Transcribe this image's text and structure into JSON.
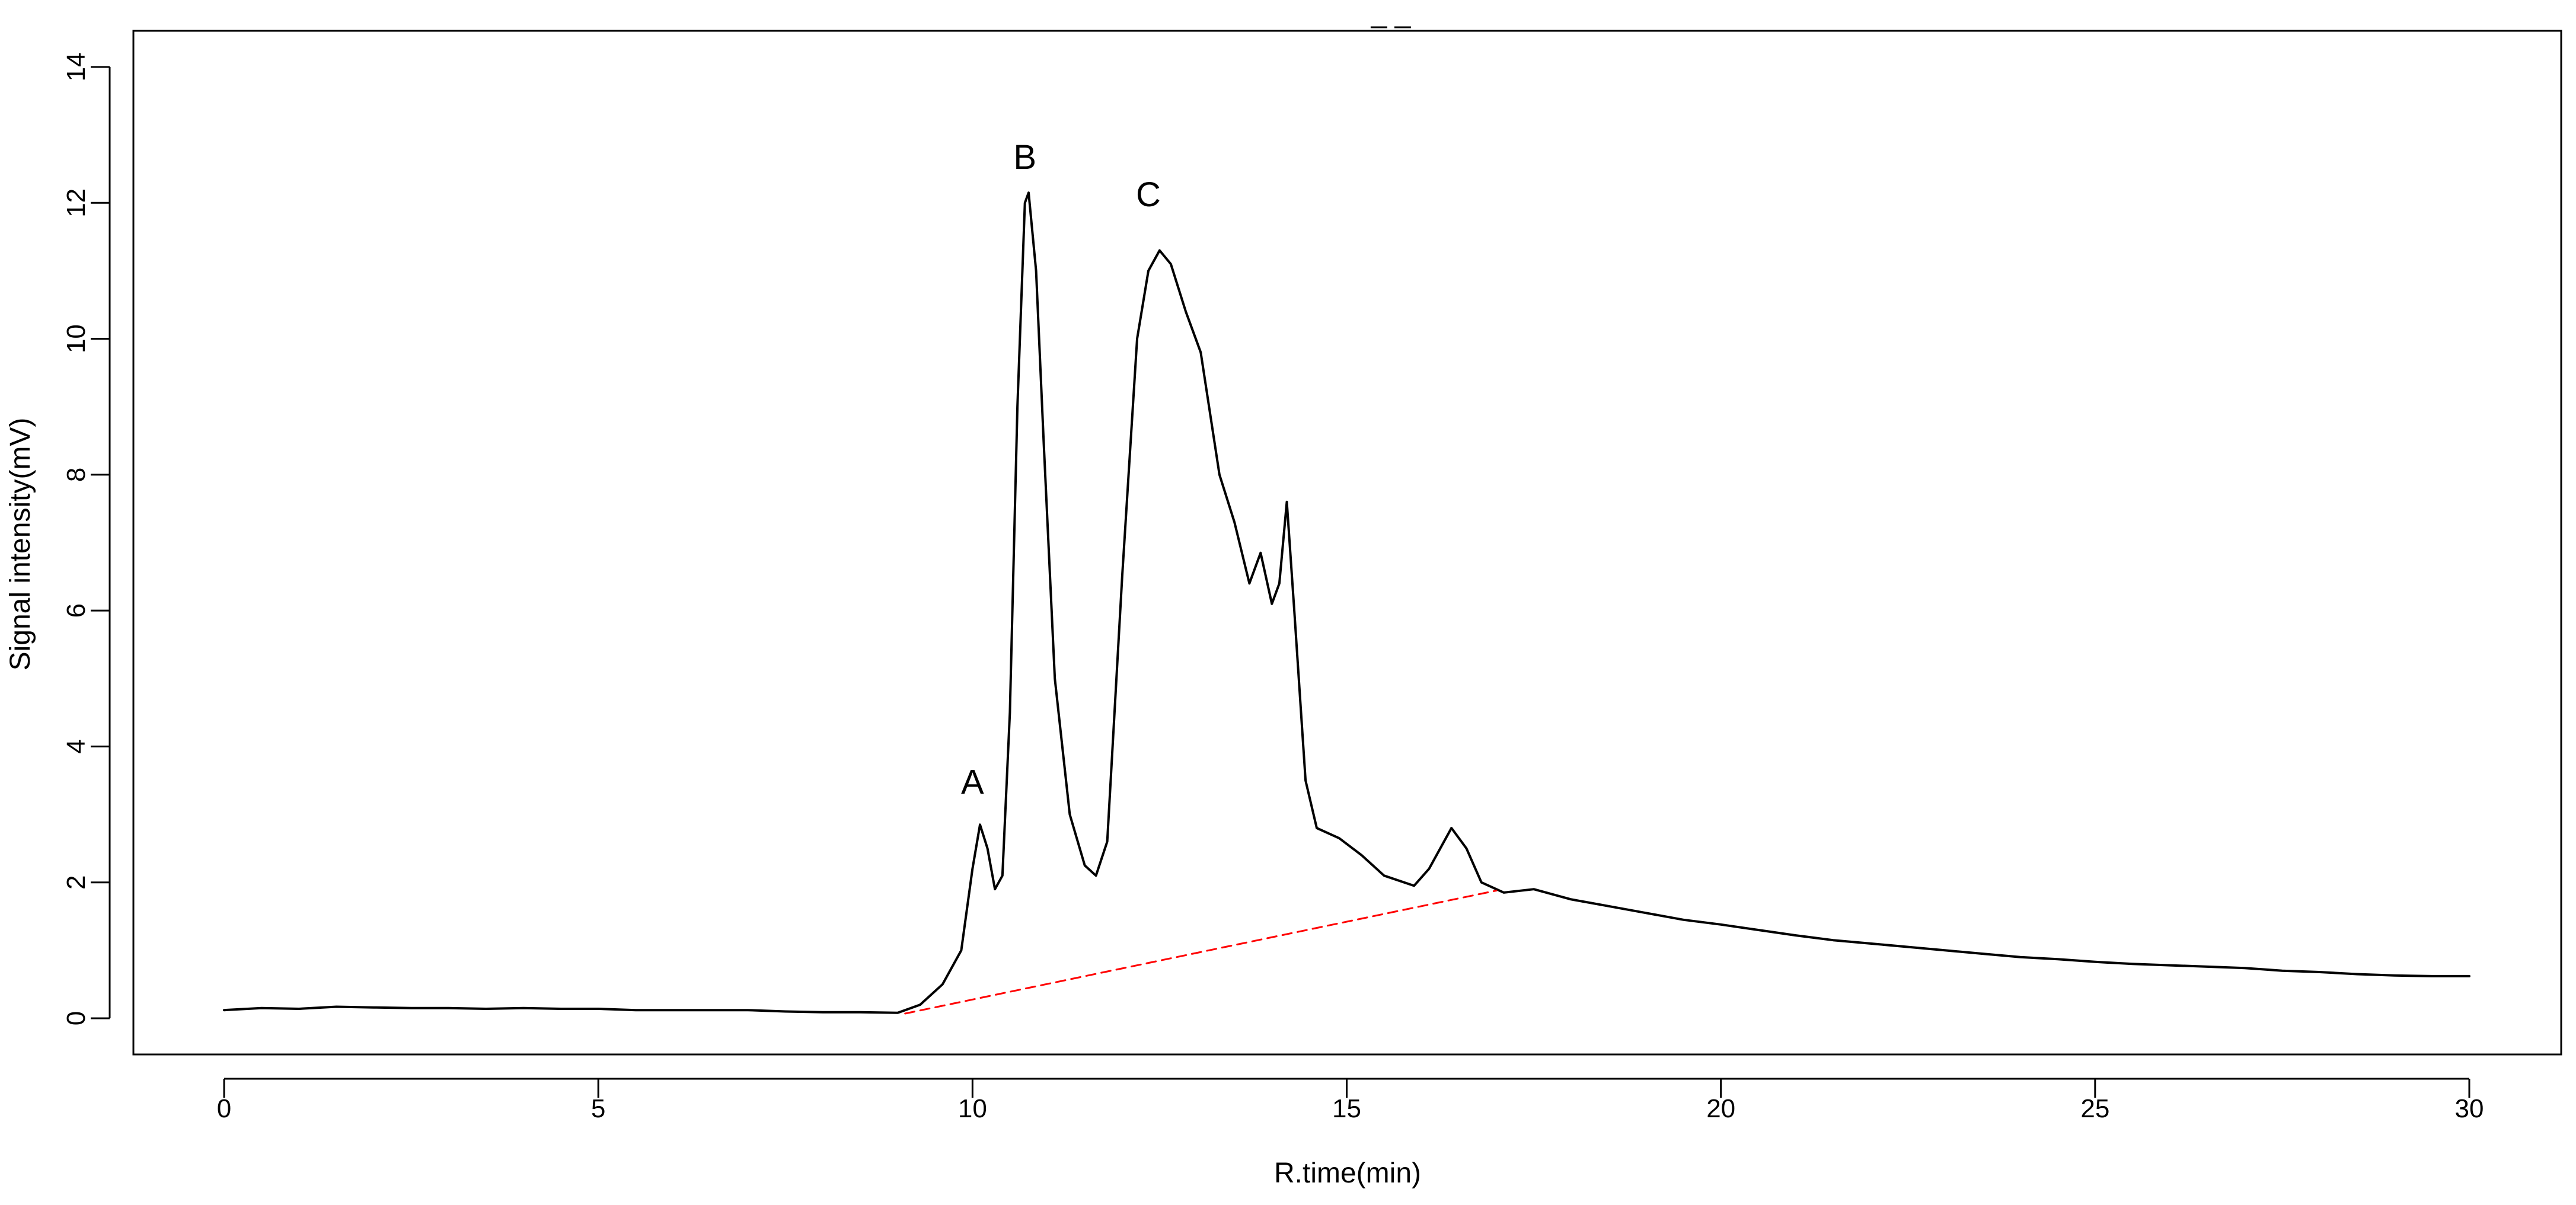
{
  "chart_data": {
    "type": "line",
    "title": "_ _",
    "xlabel": "R.time(min)",
    "ylabel": "Signal intensity(mV)",
    "xlim": [
      0,
      30
    ],
    "ylim": [
      0,
      14
    ],
    "x_ticks": [
      0,
      5,
      10,
      15,
      20,
      25,
      30
    ],
    "x_tick_labels": [
      "0",
      "5",
      "10",
      "15",
      "20",
      "25",
      "30"
    ],
    "y_ticks": [
      0,
      2,
      4,
      6,
      8,
      10,
      12,
      14
    ],
    "y_tick_labels": [
      "0",
      "2",
      "4",
      "6",
      "8",
      "10",
      "12",
      "14"
    ],
    "grid": false,
    "legend": "none",
    "series": [
      {
        "color": "#000000",
        "style": "solid",
        "points": [
          [
            0.0,
            0.12
          ],
          [
            0.5,
            0.15
          ],
          [
            1.0,
            0.14
          ],
          [
            1.5,
            0.17
          ],
          [
            2.0,
            0.16
          ],
          [
            2.5,
            0.15
          ],
          [
            3.0,
            0.15
          ],
          [
            3.5,
            0.14
          ],
          [
            4.0,
            0.15
          ],
          [
            4.5,
            0.14
          ],
          [
            5.0,
            0.14
          ],
          [
            5.5,
            0.12
          ],
          [
            6.0,
            0.12
          ],
          [
            6.5,
            0.12
          ],
          [
            7.0,
            0.12
          ],
          [
            7.5,
            0.1
          ],
          [
            8.0,
            0.09
          ],
          [
            8.5,
            0.09
          ],
          [
            9.0,
            0.08
          ],
          [
            9.3,
            0.2
          ],
          [
            9.6,
            0.5
          ],
          [
            9.85,
            1.0
          ],
          [
            10.0,
            2.2
          ],
          [
            10.1,
            2.85
          ],
          [
            10.2,
            2.5
          ],
          [
            10.3,
            1.9
          ],
          [
            10.4,
            2.1
          ],
          [
            10.5,
            4.5
          ],
          [
            10.6,
            9.0
          ],
          [
            10.7,
            12.0
          ],
          [
            10.75,
            12.15
          ],
          [
            10.85,
            11.0
          ],
          [
            10.95,
            8.5
          ],
          [
            11.1,
            5.0
          ],
          [
            11.3,
            3.0
          ],
          [
            11.5,
            2.25
          ],
          [
            11.65,
            2.1
          ],
          [
            11.8,
            2.6
          ],
          [
            12.0,
            6.5
          ],
          [
            12.2,
            10.0
          ],
          [
            12.35,
            11.0
          ],
          [
            12.5,
            11.3
          ],
          [
            12.65,
            11.1
          ],
          [
            12.85,
            10.4
          ],
          [
            13.05,
            9.8
          ],
          [
            13.3,
            8.0
          ],
          [
            13.5,
            7.3
          ],
          [
            13.7,
            6.4
          ],
          [
            13.85,
            6.85
          ],
          [
            14.0,
            6.1
          ],
          [
            14.1,
            6.4
          ],
          [
            14.2,
            7.6
          ],
          [
            14.3,
            6.0
          ],
          [
            14.45,
            3.5
          ],
          [
            14.6,
            2.8
          ],
          [
            14.9,
            2.65
          ],
          [
            15.2,
            2.4
          ],
          [
            15.5,
            2.1
          ],
          [
            15.9,
            1.95
          ],
          [
            16.1,
            2.2
          ],
          [
            16.4,
            2.8
          ],
          [
            16.6,
            2.5
          ],
          [
            16.8,
            2.0
          ],
          [
            17.1,
            1.85
          ],
          [
            17.5,
            1.9
          ],
          [
            18.0,
            1.75
          ],
          [
            18.5,
            1.65
          ],
          [
            19.0,
            1.55
          ],
          [
            19.5,
            1.45
          ],
          [
            20.0,
            1.38
          ],
          [
            20.5,
            1.3
          ],
          [
            21.0,
            1.22
          ],
          [
            21.5,
            1.15
          ],
          [
            22.0,
            1.1
          ],
          [
            22.5,
            1.05
          ],
          [
            23.0,
            1.0
          ],
          [
            23.5,
            0.95
          ],
          [
            24.0,
            0.9
          ],
          [
            24.5,
            0.87
          ],
          [
            25.0,
            0.83
          ],
          [
            25.5,
            0.8
          ],
          [
            26.0,
            0.78
          ],
          [
            26.5,
            0.76
          ],
          [
            27.0,
            0.74
          ],
          [
            27.5,
            0.7
          ],
          [
            28.0,
            0.68
          ],
          [
            28.5,
            0.65
          ],
          [
            29.0,
            0.63
          ],
          [
            29.5,
            0.62
          ],
          [
            30.0,
            0.62
          ]
        ]
      },
      {
        "color": "#ff0000",
        "style": "dashed",
        "points": [
          [
            9.1,
            0.07
          ],
          [
            17.0,
            1.88
          ]
        ]
      }
    ],
    "annotations": [
      {
        "text": "A",
        "x": 10.0,
        "y": 3.3
      },
      {
        "text": "B",
        "x": 10.7,
        "y": 12.5
      },
      {
        "text": "C",
        "x": 12.35,
        "y": 11.95
      }
    ]
  }
}
